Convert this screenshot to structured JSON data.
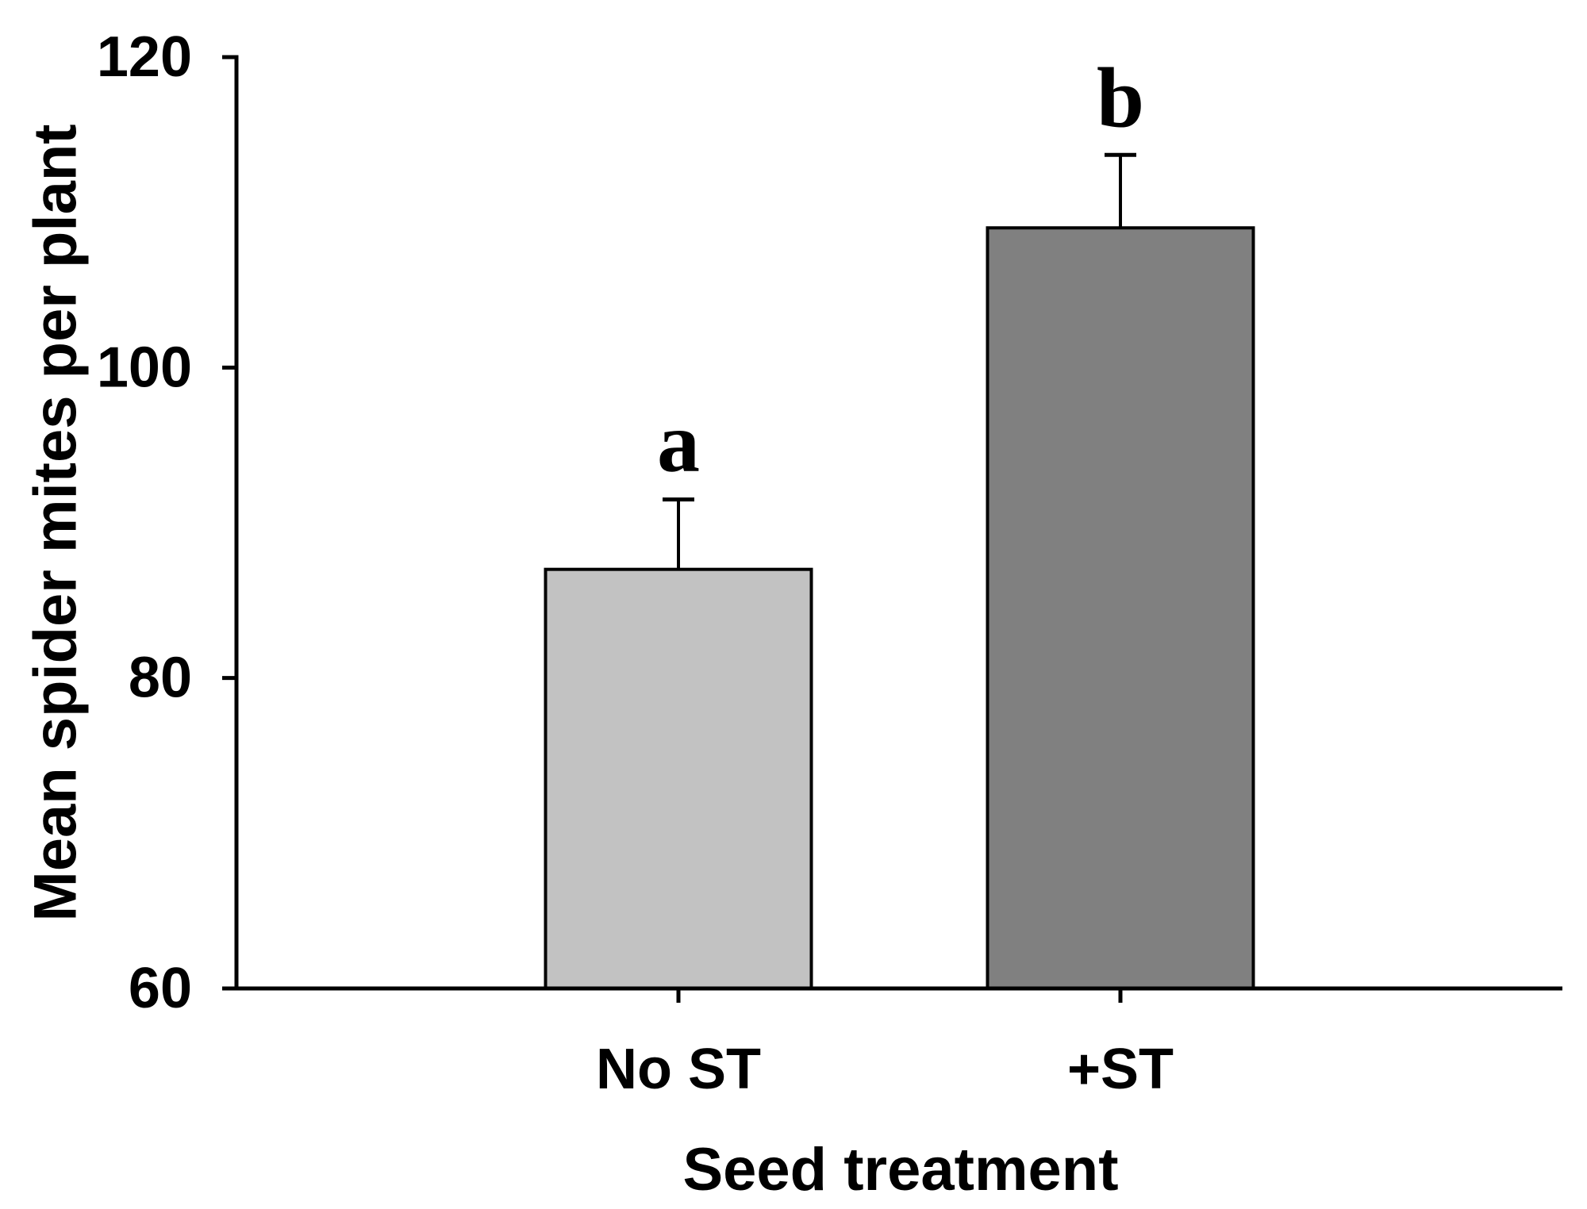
{
  "figure": {
    "background": "#ffffff",
    "text_color": "#000000",
    "axis_color": "#000000"
  },
  "chart_data": {
    "type": "bar",
    "title": "",
    "xlabel": "Seed treatment",
    "ylabel": "Mean spider mites per plant",
    "categories": [
      "No ST",
      "+ST"
    ],
    "values": [
      87,
      109
    ],
    "errors_plus": [
      4.5,
      4.7
    ],
    "significance_letters": [
      "a",
      "b"
    ],
    "bar_colors": [
      "#c2c2c2",
      "#808080"
    ],
    "bar_outline_color": "#000000",
    "error_bar_color": "#000000",
    "ylim": [
      60,
      120
    ],
    "yticks": [
      60,
      80,
      100,
      120
    ],
    "ytick_labels": [
      "60",
      "80",
      "100",
      "120"
    ],
    "grid": false,
    "legend_position": "none"
  }
}
